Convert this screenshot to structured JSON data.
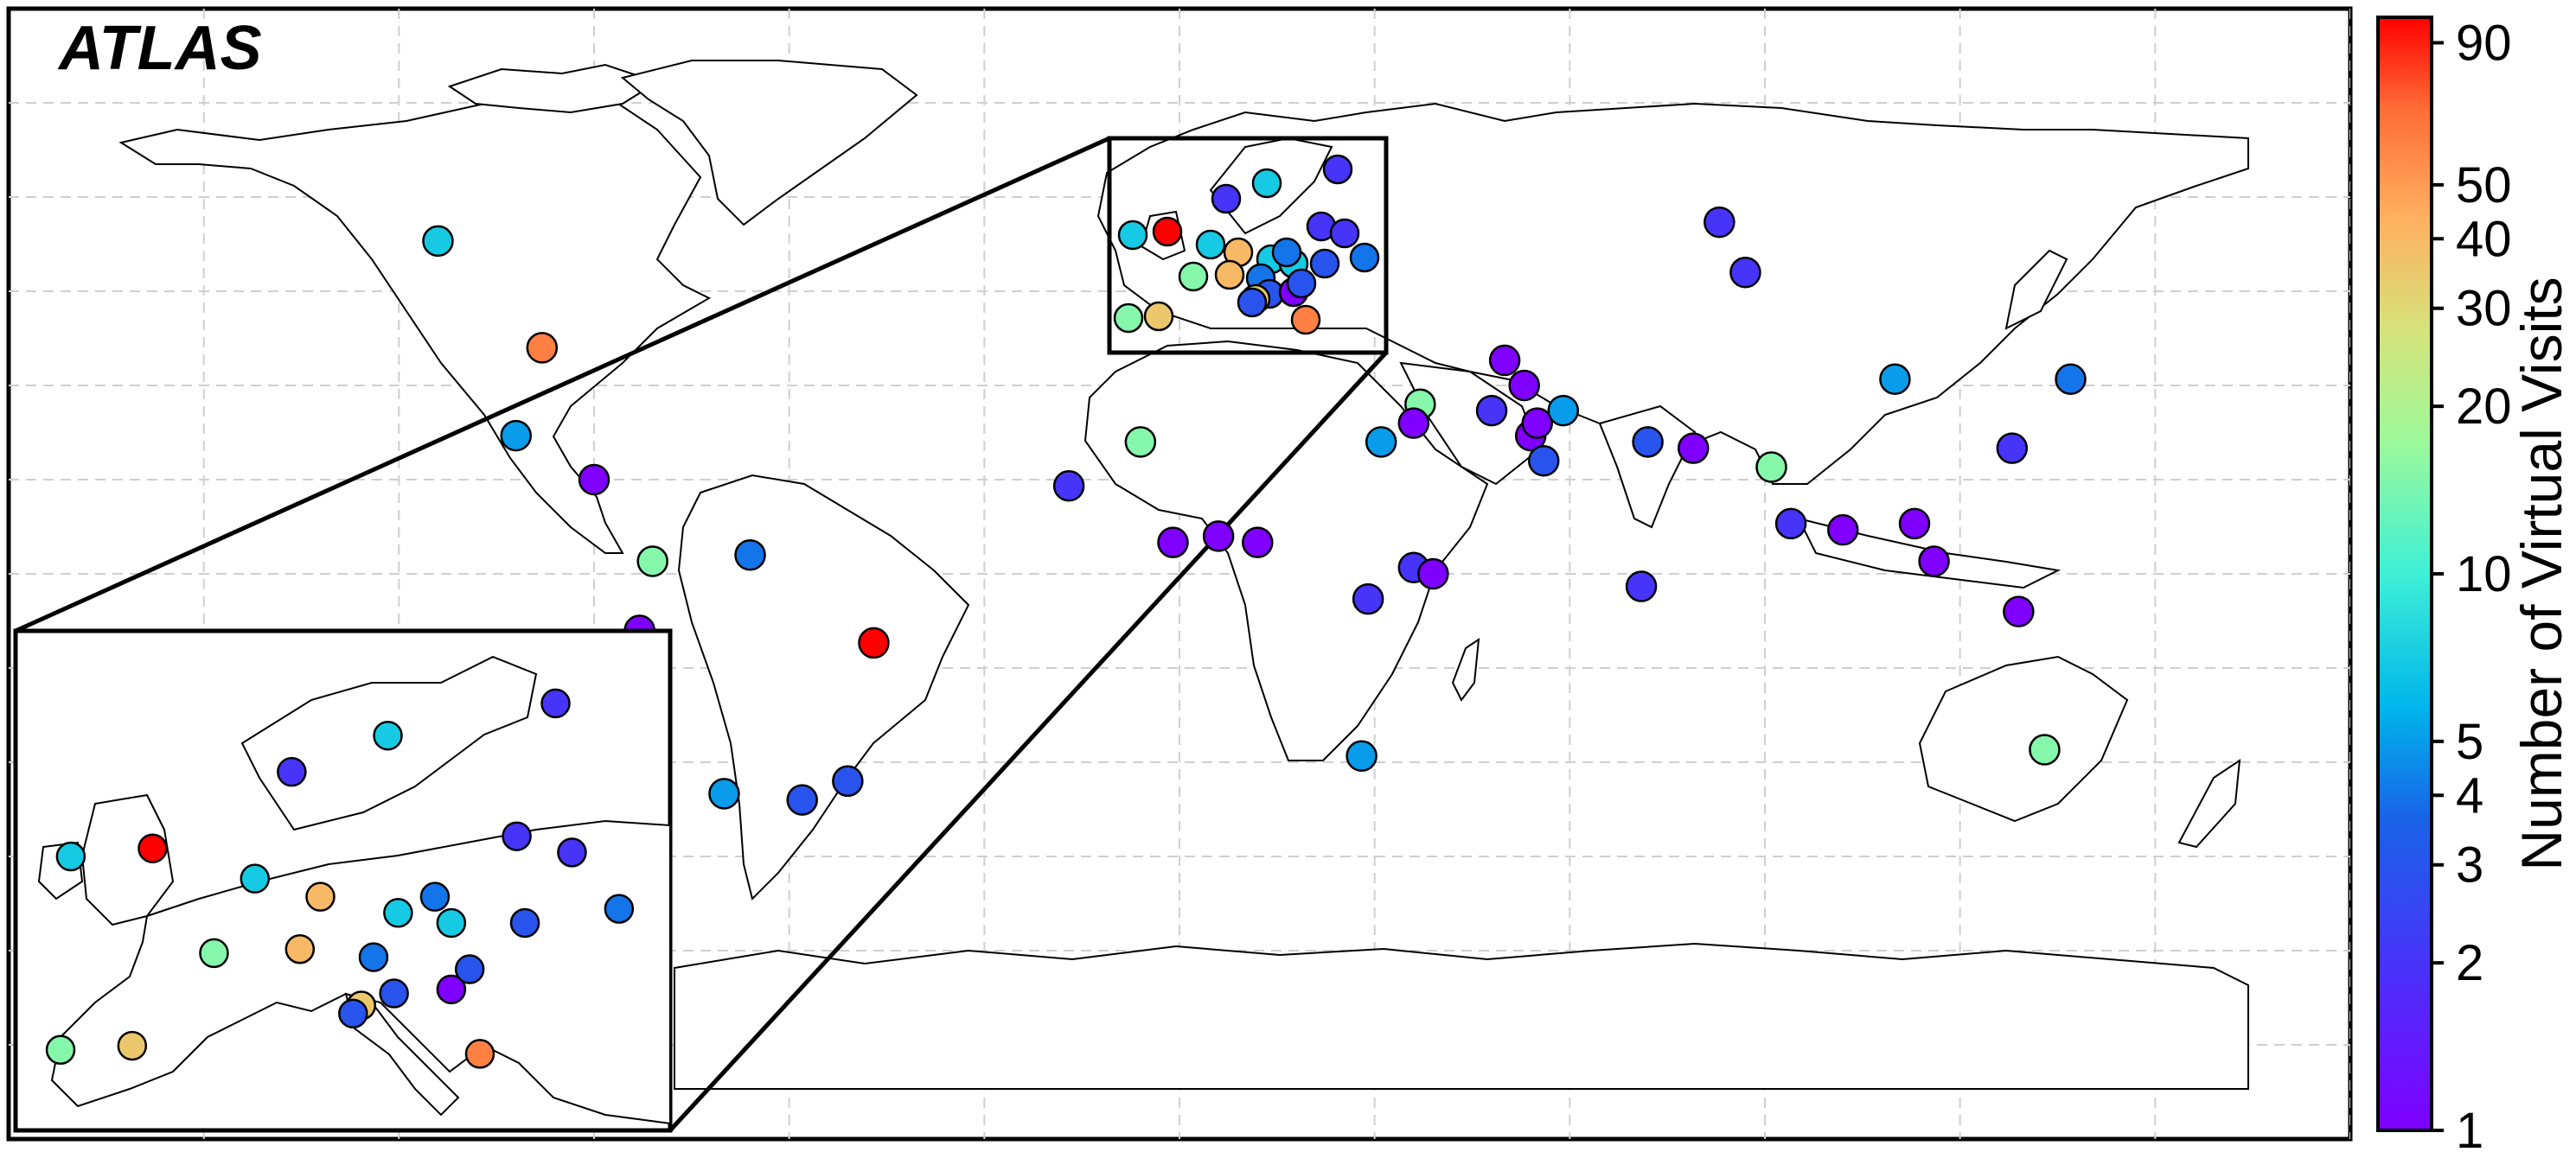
{
  "title": "ATLAS",
  "colorbar": {
    "label": "Number of Virtual Visits",
    "scale": "log",
    "min": 1,
    "max": 100,
    "ticks": [
      {
        "value": 1,
        "label": "1"
      },
      {
        "value": 2,
        "label": "2"
      },
      {
        "value": 3,
        "label": "3"
      },
      {
        "value": 4,
        "label": "4"
      },
      {
        "value": 5,
        "label": "5"
      },
      {
        "value": 10,
        "label": "10"
      },
      {
        "value": 20,
        "label": "20"
      },
      {
        "value": 30,
        "label": "30"
      },
      {
        "value": 40,
        "label": "40"
      },
      {
        "value": 50,
        "label": "50"
      },
      {
        "value": 90,
        "label": "90"
      }
    ],
    "colormap": "rainbow"
  },
  "map": {
    "projection": "equirectangular",
    "lon_range": [
      -180,
      180
    ],
    "lat_range": [
      -90,
      90
    ],
    "gridlines": "dashed",
    "inset": "Europe"
  },
  "colors": {
    "frame": "#000000",
    "grid": "#cccccc",
    "land_fill": "#ffffff",
    "coastline": "#000000"
  },
  "chart_data": {
    "type": "scatter",
    "x_axis": "longitude",
    "y_axis": "latitude",
    "value_label": "Number of Virtual Visits",
    "points": [
      {
        "lon": -114,
        "lat": 53,
        "v": 7
      },
      {
        "lon": -98,
        "lat": 36,
        "v": 60
      },
      {
        "lon": -102,
        "lat": 22,
        "v": 5
      },
      {
        "lon": -90,
        "lat": 15,
        "v": 1
      },
      {
        "lon": -81,
        "lat": 2,
        "v": 15
      },
      {
        "lon": -66,
        "lat": 3,
        "v": 4
      },
      {
        "lon": -83,
        "lat": -9,
        "v": 1
      },
      {
        "lon": -47,
        "lat": -11,
        "v": 100
      },
      {
        "lon": -70,
        "lat": -35,
        "v": 5
      },
      {
        "lon": -58,
        "lat": -36,
        "v": 3
      },
      {
        "lon": -51,
        "lat": -33,
        "v": 3
      },
      {
        "lon": -6,
        "lat": 21,
        "v": 15
      },
      {
        "lon": -17,
        "lat": 14,
        "v": 2
      },
      {
        "lon": -1,
        "lat": 5,
        "v": 1
      },
      {
        "lon": 6,
        "lat": 6,
        "v": 1
      },
      {
        "lon": 12,
        "lat": 5,
        "v": 1
      },
      {
        "lon": 36,
        "lat": 1,
        "v": 2
      },
      {
        "lon": 39,
        "lat": 0,
        "v": 1
      },
      {
        "lon": 29,
        "lat": -4,
        "v": 2
      },
      {
        "lon": 28,
        "lat": -29,
        "v": 5
      },
      {
        "lon": 31,
        "lat": 21,
        "v": 5
      },
      {
        "lon": 37,
        "lat": 27,
        "v": 15
      },
      {
        "lon": 36,
        "lat": 24,
        "v": 1
      },
      {
        "lon": 48,
        "lat": 26,
        "v": 2
      },
      {
        "lon": 50,
        "lat": 34,
        "v": 1
      },
      {
        "lon": 54,
        "lat": 22,
        "v": 1
      },
      {
        "lon": 55,
        "lat": 24,
        "v": 1
      },
      {
        "lon": 56,
        "lat": 18,
        "v": 3
      },
      {
        "lon": 53,
        "lat": 30,
        "v": 1
      },
      {
        "lon": 59,
        "lat": 26,
        "v": 5
      },
      {
        "lon": 72,
        "lat": 21,
        "v": 3
      },
      {
        "lon": 83,
        "lat": 56,
        "v": 2
      },
      {
        "lon": 91,
        "lat": 17,
        "v": 15
      },
      {
        "lon": 94,
        "lat": 8,
        "v": 2
      },
      {
        "lon": 102,
        "lat": 7,
        "v": 1
      },
      {
        "lon": 110,
        "lat": 31,
        "v": 5
      },
      {
        "lon": 113,
        "lat": 8,
        "v": 1
      },
      {
        "lon": 128,
        "lat": 20,
        "v": 2
      },
      {
        "lon": 137,
        "lat": 31,
        "v": 4
      },
      {
        "lon": 129,
        "lat": -6,
        "v": 1
      },
      {
        "lon": 116,
        "lat": 2,
        "v": 1
      },
      {
        "lon": 133,
        "lat": -28,
        "v": 15
      },
      {
        "lon": 79,
        "lat": 20,
        "v": 1
      },
      {
        "lon": 71,
        "lat": -2,
        "v": 2
      },
      {
        "lon": 87,
        "lat": 48,
        "v": 2
      }
    ]
  }
}
